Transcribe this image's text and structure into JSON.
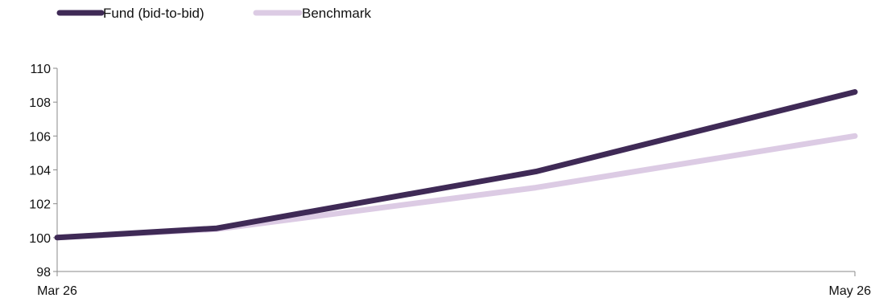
{
  "chart_data": {
    "type": "line",
    "x": [
      "Mar 26",
      "",
      "",
      "",
      "",
      "May 26"
    ],
    "x_tick_labels": [
      "Mar 26",
      "May 26"
    ],
    "yticks": [
      98,
      100,
      102,
      104,
      106,
      108,
      110
    ],
    "ylim": [
      98,
      110
    ],
    "grid": false,
    "legend_position": "top-left",
    "series": [
      {
        "name": "Fund (bid-to-bid)",
        "color": "#3f2a56",
        "values": [
          100.0,
          100.55,
          null,
          103.9,
          null,
          108.6
        ]
      },
      {
        "name": "Benchmark",
        "color": "#dccbe4",
        "values": [
          100.0,
          100.5,
          null,
          102.95,
          null,
          106.0
        ]
      }
    ]
  }
}
